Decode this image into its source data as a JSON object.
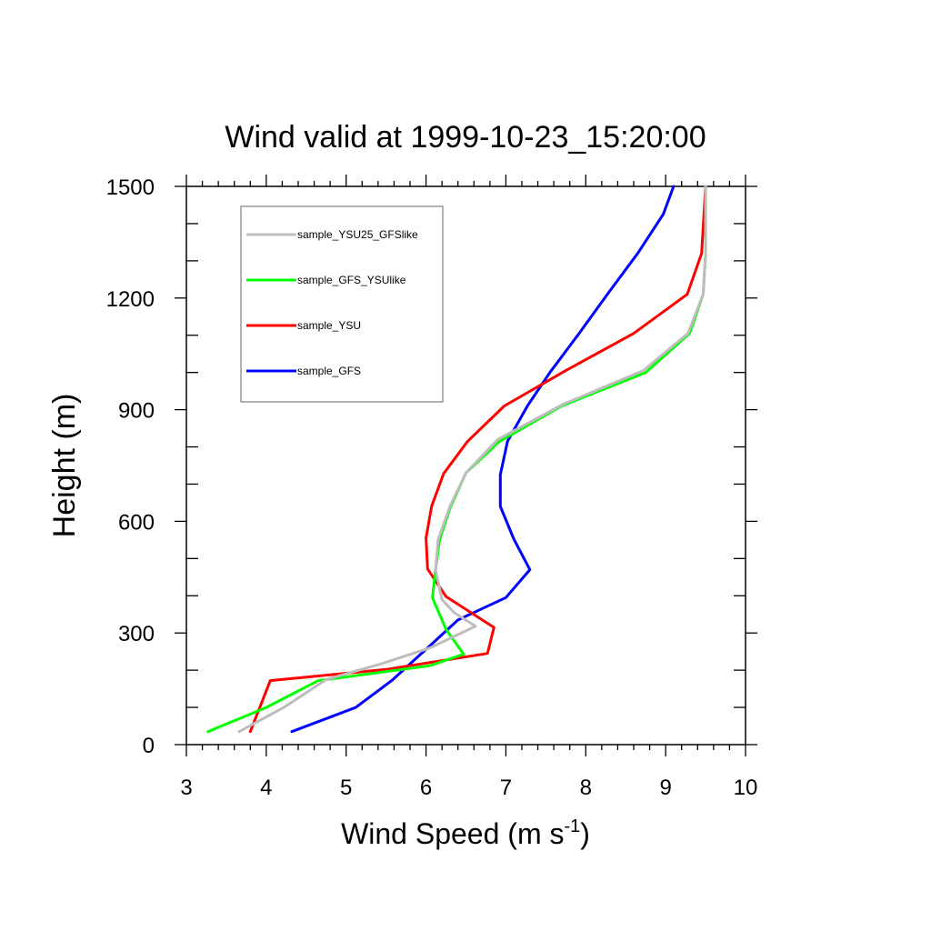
{
  "chart_data": {
    "type": "line",
    "title": "Wind valid at 1999-10-23_15:20:00",
    "xlabel": "Wind Speed (m s",
    "xlabel_sup": "-1",
    "xlabel_close": ")",
    "ylabel": "Height (m)",
    "xlim": [
      3,
      10
    ],
    "ylim": [
      0,
      1500
    ],
    "x_major_ticks": [
      3,
      4,
      5,
      6,
      7,
      8,
      9,
      10
    ],
    "y_major_ticks": [
      0,
      300,
      600,
      900,
      1200,
      1500
    ],
    "legend_placement": "top-left",
    "series": [
      {
        "name": "sample_YSU25_GFSlike",
        "color": "#bdbdbd",
        "points": [
          [
            3.66,
            35
          ],
          [
            4.22,
            100
          ],
          [
            4.75,
            175
          ],
          [
            5.45,
            218
          ],
          [
            6.05,
            260
          ],
          [
            6.62,
            318
          ],
          [
            6.35,
            355
          ],
          [
            6.2,
            390
          ],
          [
            6.12,
            470
          ],
          [
            6.15,
            550
          ],
          [
            6.3,
            640
          ],
          [
            6.5,
            730
          ],
          [
            6.9,
            820
          ],
          [
            7.72,
            915
          ],
          [
            8.72,
            1005
          ],
          [
            9.28,
            1105
          ],
          [
            9.47,
            1210
          ],
          [
            9.5,
            1320
          ],
          [
            9.5,
            1500
          ]
        ]
      },
      {
        "name": "sample_GFS_YSUlike",
        "color": "#00ff00",
        "points": [
          [
            3.27,
            35
          ],
          [
            4.0,
            100
          ],
          [
            4.65,
            172
          ],
          [
            6.05,
            212
          ],
          [
            6.47,
            243
          ],
          [
            6.25,
            310
          ],
          [
            6.08,
            395
          ],
          [
            6.12,
            470
          ],
          [
            6.17,
            550
          ],
          [
            6.3,
            635
          ],
          [
            6.5,
            730
          ],
          [
            6.92,
            815
          ],
          [
            7.7,
            910
          ],
          [
            8.75,
            1000
          ],
          [
            9.3,
            1105
          ],
          [
            9.47,
            1210
          ],
          [
            9.5,
            1320
          ],
          [
            9.5,
            1500
          ]
        ]
      },
      {
        "name": "sample_YSU",
        "color": "#ff0000",
        "points": [
          [
            3.8,
            35
          ],
          [
            4.05,
            172
          ],
          [
            5.5,
            202
          ],
          [
            6.77,
            245
          ],
          [
            6.85,
            315
          ],
          [
            6.25,
            398
          ],
          [
            6.02,
            472
          ],
          [
            6.0,
            555
          ],
          [
            6.07,
            640
          ],
          [
            6.22,
            728
          ],
          [
            6.52,
            815
          ],
          [
            6.98,
            910
          ],
          [
            7.75,
            1005
          ],
          [
            8.6,
            1105
          ],
          [
            9.27,
            1210
          ],
          [
            9.45,
            1320
          ],
          [
            9.5,
            1500
          ]
        ]
      },
      {
        "name": "sample_GFS",
        "color": "#0000ff",
        "points": [
          [
            4.32,
            35
          ],
          [
            5.12,
            100
          ],
          [
            5.57,
            172
          ],
          [
            6.02,
            260
          ],
          [
            6.4,
            335
          ],
          [
            7.0,
            395
          ],
          [
            7.3,
            470
          ],
          [
            7.1,
            552
          ],
          [
            6.93,
            640
          ],
          [
            6.93,
            725
          ],
          [
            7.02,
            815
          ],
          [
            7.27,
            910
          ],
          [
            7.55,
            1000
          ],
          [
            7.9,
            1100
          ],
          [
            8.27,
            1210
          ],
          [
            8.65,
            1320
          ],
          [
            8.97,
            1425
          ],
          [
            9.1,
            1500
          ]
        ]
      }
    ]
  }
}
